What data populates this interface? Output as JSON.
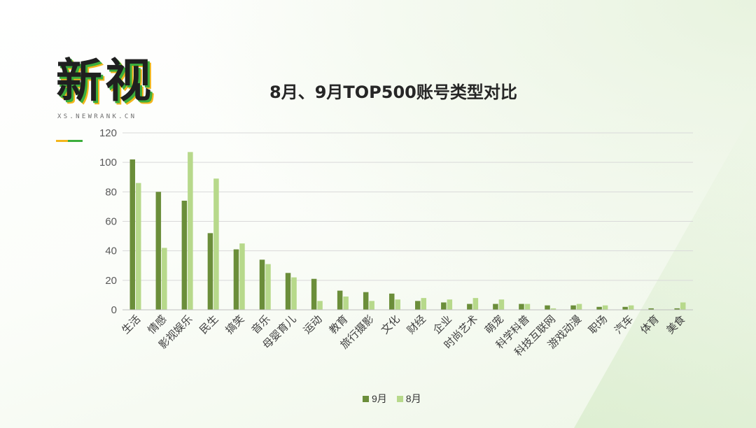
{
  "logo": {
    "text": "新视",
    "subtitle": "XS.NEWRANK.CN"
  },
  "colors": {
    "sep": "#6b8e3a",
    "aug": "#b7d98b",
    "grid": "#d9d9d9",
    "axis": "#bfbfbf",
    "logo_green": "#3cae3c",
    "logo_yellow": "#f3b61c"
  },
  "chart_data": {
    "type": "bar",
    "title": "8月、9月TOP500账号类型对比",
    "xlabel": "",
    "ylabel": "",
    "ylim": [
      0,
      120
    ],
    "yticks": [
      0,
      20,
      40,
      60,
      80,
      100,
      120
    ],
    "grid": true,
    "legend_position": "bottom",
    "categories": [
      "生活",
      "情感",
      "影视娱乐",
      "民生",
      "搞笑",
      "音乐",
      "母婴育儿",
      "运动",
      "教育",
      "旅行摄影",
      "文化",
      "财经",
      "企业",
      "时尚艺术",
      "萌宠",
      "科学科普",
      "科技互联网",
      "游戏动漫",
      "职场",
      "汽车",
      "体育",
      "美食"
    ],
    "series": [
      {
        "name": "9月",
        "values": [
          102,
          80,
          74,
          52,
          41,
          34,
          25,
          21,
          13,
          12,
          11,
          6,
          5,
          4,
          4,
          4,
          3,
          3,
          2,
          2,
          1,
          1
        ]
      },
      {
        "name": "8月",
        "values": [
          86,
          42,
          107,
          89,
          45,
          31,
          22,
          6,
          9,
          6,
          7,
          8,
          7,
          8,
          7,
          4,
          1,
          4,
          3,
          3,
          0,
          5
        ]
      }
    ]
  }
}
